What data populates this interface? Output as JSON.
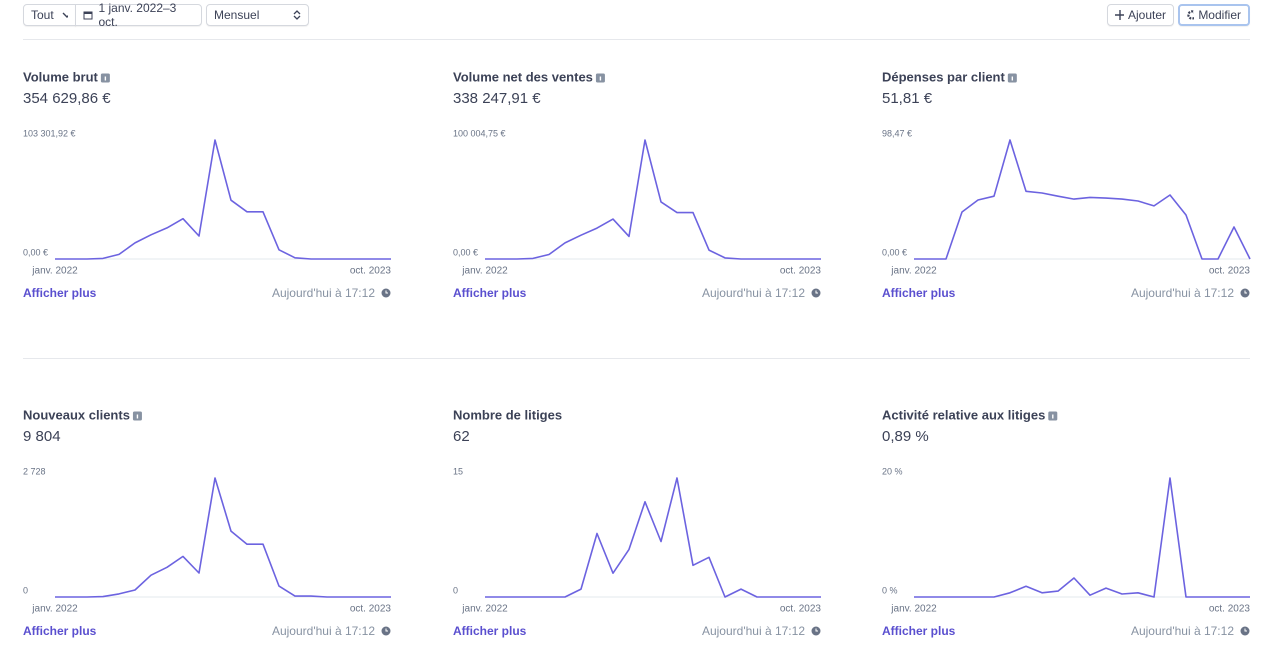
{
  "toolbar": {
    "filter": "Tout",
    "date_range": "1 janv. 2022–3 oct.",
    "interval": "Mensuel",
    "add": "Ajouter",
    "edit": "Modifier"
  },
  "chart_data": [
    {
      "type": "line",
      "title": "Volume brut",
      "info_icon": true,
      "total": "354 629,86 €",
      "color": "#6c63e0",
      "categories": [
        "janv. 2022",
        null,
        null,
        null,
        null,
        null,
        null,
        null,
        null,
        null,
        null,
        null,
        null,
        null,
        null,
        null,
        null,
        null,
        null,
        null,
        null,
        "oct. 2023"
      ],
      "values": [
        0,
        0,
        0,
        500,
        4000,
        14000,
        21000,
        27000,
        35000,
        20000,
        103301.92,
        51000,
        41000,
        41000,
        8000,
        1000,
        0,
        0,
        0,
        0,
        0,
        0
      ],
      "ylim": [
        0,
        103301.92
      ],
      "yticks": [
        {
          "value": 0,
          "label": "0,00 €"
        },
        {
          "value": 103301.92,
          "label": "103 301,92 €"
        }
      ],
      "link": "Afficher plus",
      "updated": "Aujourd'hui à 17:12"
    },
    {
      "type": "line",
      "title": "Volume net des ventes",
      "info_icon": true,
      "total": "338 247,91 €",
      "color": "#6c63e0",
      "categories": [
        "janv. 2022",
        null,
        null,
        null,
        null,
        null,
        null,
        null,
        null,
        null,
        null,
        null,
        null,
        null,
        null,
        null,
        null,
        null,
        null,
        null,
        null,
        "oct. 2023"
      ],
      "values": [
        0,
        0,
        0,
        500,
        3800,
        13500,
        20000,
        26000,
        33500,
        19000,
        100004.75,
        48000,
        39000,
        39000,
        7500,
        900,
        0,
        0,
        0,
        0,
        0,
        0
      ],
      "ylim": [
        0,
        100004.75
      ],
      "yticks": [
        {
          "value": 0,
          "label": "0,00 €"
        },
        {
          "value": 100004.75,
          "label": "100 004,75 €"
        }
      ],
      "link": "Afficher plus",
      "updated": "Aujourd'hui à 17:12"
    },
    {
      "type": "line",
      "title": "Dépenses par client",
      "info_icon": true,
      "total": "51,81 €",
      "color": "#6c63e0",
      "categories": [
        "janv. 2022",
        null,
        null,
        null,
        null,
        null,
        null,
        null,
        null,
        null,
        null,
        null,
        null,
        null,
        null,
        null,
        null,
        null,
        null,
        null,
        null,
        "oct. 2023"
      ],
      "values": [
        0,
        0,
        0,
        38.9,
        48.8,
        52,
        98.47,
        56,
        54.6,
        52,
        49.6,
        51,
        50.4,
        49.6,
        48,
        43.9,
        53,
        36.4,
        0,
        0,
        26.5,
        0
      ],
      "ylim": [
        0,
        98.47
      ],
      "yticks": [
        {
          "value": 0,
          "label": "0,00 €"
        },
        {
          "value": 98.47,
          "label": "98,47 €"
        }
      ],
      "link": "Afficher plus",
      "updated": "Aujourd'hui à 17:12"
    },
    {
      "type": "line",
      "title": "Nouveaux clients",
      "info_icon": true,
      "total": "9 804",
      "color": "#6c63e0",
      "categories": [
        "janv. 2022",
        null,
        null,
        null,
        null,
        null,
        null,
        null,
        null,
        null,
        null,
        null,
        null,
        null,
        null,
        null,
        null,
        null,
        null,
        null,
        null,
        "oct. 2023"
      ],
      "values": [
        0,
        0,
        0,
        10,
        70,
        160,
        500,
        680,
        930,
        550,
        2728,
        1510,
        1210,
        1210,
        250,
        20,
        20,
        0,
        0,
        0,
        0,
        0
      ],
      "ylim": [
        0,
        2728
      ],
      "yticks": [
        0,
        {
          "value": 2728,
          "label": "2 728"
        }
      ],
      "link": "Afficher plus",
      "updated": "Aujourd'hui à 17:12"
    },
    {
      "type": "line",
      "title": "Nombre de litiges",
      "info_icon": false,
      "total": "62",
      "color": "#6c63e0",
      "categories": [
        "janv. 2022",
        null,
        null,
        null,
        null,
        null,
        null,
        null,
        null,
        null,
        null,
        null,
        null,
        null,
        null,
        null,
        null,
        null,
        null,
        null,
        null,
        "oct. 2023"
      ],
      "values": [
        0,
        0,
        0,
        0,
        0,
        0,
        1,
        8,
        3,
        6,
        12,
        7,
        15,
        4,
        5,
        0,
        1,
        0,
        0,
        0,
        0,
        0
      ],
      "ylim": [
        0,
        15
      ],
      "yticks": [
        0,
        15
      ],
      "link": "Afficher plus",
      "updated": "Aujourd'hui à 17:12"
    },
    {
      "type": "line",
      "title": "Activité relative aux litiges",
      "info_icon": true,
      "total": "0,89 %",
      "color": "#6c63e0",
      "categories": [
        "janv. 2022",
        null,
        null,
        null,
        null,
        null,
        null,
        null,
        null,
        null,
        null,
        null,
        null,
        null,
        null,
        null,
        null,
        null,
        null,
        null,
        null,
        "oct. 2023"
      ],
      "values": [
        0,
        0,
        0,
        0,
        0,
        0,
        0.7,
        1.8,
        0.7,
        1,
        3.2,
        0.3,
        1.5,
        0.5,
        0.7,
        0,
        20,
        0,
        0,
        0,
        0,
        0
      ],
      "ylim": [
        0,
        20
      ],
      "yticks": [
        {
          "value": 0,
          "label": "0 %"
        },
        {
          "value": 20,
          "label": "20 %"
        }
      ],
      "link": "Afficher plus",
      "updated": "Aujourd'hui à 17:12"
    }
  ]
}
